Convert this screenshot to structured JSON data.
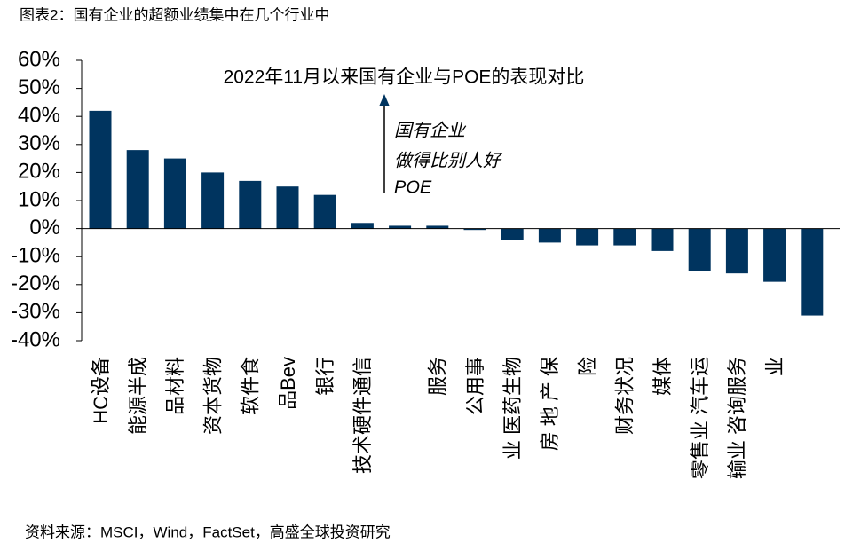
{
  "header": "图表2：国有企业的超额业绩集中在几个行业中",
  "source": "资料来源：MSCI，Wind，FactSet，高盛全球投资研究",
  "chart_data": {
    "type": "bar",
    "title": "2022年11月以来国有企业与POE的表现对比",
    "annotations": [
      "国有企业",
      "做得比别人好",
      "POE"
    ],
    "categories": [
      "HC设备",
      "能源半成",
      "品材料",
      "资本货物",
      "软件食",
      "品Bev",
      "银行",
      "技术硬件通信",
      null,
      "服务",
      "公用事",
      "业 医药生物",
      "房 地 产 保",
      "险",
      "财务状况",
      "媒体",
      "零售业 汽车运",
      "输业 咨询服务",
      "业",
      null
    ],
    "values": [
      42,
      28,
      25,
      20,
      17,
      15,
      12,
      2,
      1,
      1,
      -0.5,
      -4,
      -5,
      -6,
      -6,
      -8,
      -15,
      -16,
      -19,
      -31
    ],
    "color": "#00345f",
    "ylim": [
      -40,
      60
    ],
    "yticks": [
      {
        "value": 60,
        "label": "60%"
      },
      {
        "value": 50,
        "label": "50%"
      },
      {
        "value": 40,
        "label": "40%"
      },
      {
        "value": 30,
        "label": "30%"
      },
      {
        "value": 20,
        "label": "20%"
      },
      {
        "value": 10,
        "label": "10%"
      },
      {
        "value": 0,
        "label": "0%"
      },
      {
        "value": -10,
        "label": "-10%"
      },
      {
        "value": -20,
        "label": "-20%"
      },
      {
        "value": -30,
        "label": "-30%"
      },
      {
        "value": -40,
        "label": "-40%"
      }
    ],
    "grid": false
  }
}
